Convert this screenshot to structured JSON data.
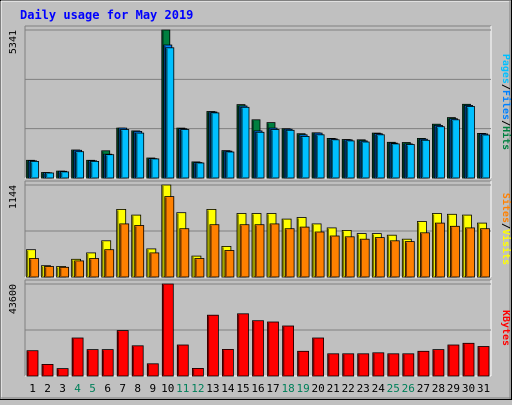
{
  "chart_data": {
    "type": "bar",
    "title": "Daily usage for May 2019",
    "categories": [
      "1",
      "2",
      "3",
      "4",
      "5",
      "6",
      "7",
      "8",
      "9",
      "10",
      "11",
      "12",
      "13",
      "14",
      "15",
      "16",
      "17",
      "18",
      "19",
      "20",
      "21",
      "22",
      "23",
      "24",
      "25",
      "26",
      "27",
      "28",
      "29",
      "30",
      "31"
    ],
    "weekend_days": [
      "4",
      "5",
      "11",
      "12",
      "18",
      "19",
      "25",
      "26"
    ],
    "panels": [
      {
        "id": "hits-files-pages",
        "max_label": "5341",
        "ymax": 5341,
        "legend": [
          "Pages",
          "Files",
          "Hits"
        ],
        "series": [
          {
            "name": "Hits",
            "color": "#008040",
            "values": [
              640,
              200,
              250,
              1010,
              640,
              980,
              1800,
              1700,
              720,
              5341,
              1800,
              580,
              2400,
              990,
              2650,
              2100,
              2000,
              1780,
              1600,
              1630,
              1430,
              1390,
              1380,
              1620,
              1290,
              1280,
              1430,
              1940,
              2180,
              2660,
              1610
            ]
          },
          {
            "name": "Files",
            "color": "#0080ff",
            "values": [
              620,
              190,
              240,
              1000,
              620,
              860,
              1800,
              1680,
              700,
              4800,
              1780,
              560,
              2380,
              970,
              2600,
              1700,
              1800,
              1760,
              1560,
              1620,
              1410,
              1380,
              1340,
              1600,
              1260,
              1230,
              1400,
              1900,
              2140,
              2620,
              1590
            ]
          },
          {
            "name": "Pages",
            "color": "#00c0ff",
            "values": [
              600,
              180,
              220,
              950,
              600,
              840,
              1750,
              1620,
              690,
              4700,
              1750,
              540,
              2350,
              940,
              2550,
              1650,
              1750,
              1720,
              1500,
              1560,
              1380,
              1340,
              1300,
              1560,
              1230,
              1210,
              1360,
              1850,
              2100,
              2580,
              1550
            ]
          }
        ]
      },
      {
        "id": "visits-sites",
        "max_label": "1144",
        "ymax": 1144,
        "legend": [
          "Sites",
          "Visits"
        ],
        "series": [
          {
            "name": "Visits",
            "color": "#ffff00",
            "values": [
              340,
              140,
              130,
              220,
              300,
              450,
              840,
              770,
              350,
              1144,
              800,
              260,
              840,
              380,
              790,
              790,
              790,
              720,
              740,
              660,
              610,
              580,
              540,
              540,
              520,
              470,
              690,
              790,
              780,
              770,
              670
            ]
          },
          {
            "name": "Sites",
            "color": "#ff8000",
            "values": [
              230,
              130,
              120,
              200,
              230,
              340,
              660,
              640,
              300,
              1000,
              600,
              230,
              650,
              330,
              650,
              650,
              660,
              600,
              620,
              560,
              510,
              500,
              470,
              490,
              450,
              440,
              550,
              670,
              630,
              610,
              600
            ]
          }
        ]
      },
      {
        "id": "kbytes",
        "max_label": "43600",
        "ymax": 43600,
        "legend": [
          "KBytes"
        ],
        "series": [
          {
            "name": "KBytes",
            "color": "#ff0000",
            "values": [
              12000,
              5500,
              3500,
              18000,
              12500,
              12500,
              21500,
              14300,
              5800,
              43600,
              14700,
              3600,
              28800,
              12600,
              29500,
              26200,
              25600,
              23700,
              11700,
              18000,
              10500,
              10500,
              10500,
              11000,
              10500,
              10500,
              11700,
              12500,
              14700,
              15500,
              14000
            ]
          }
        ]
      }
    ]
  }
}
